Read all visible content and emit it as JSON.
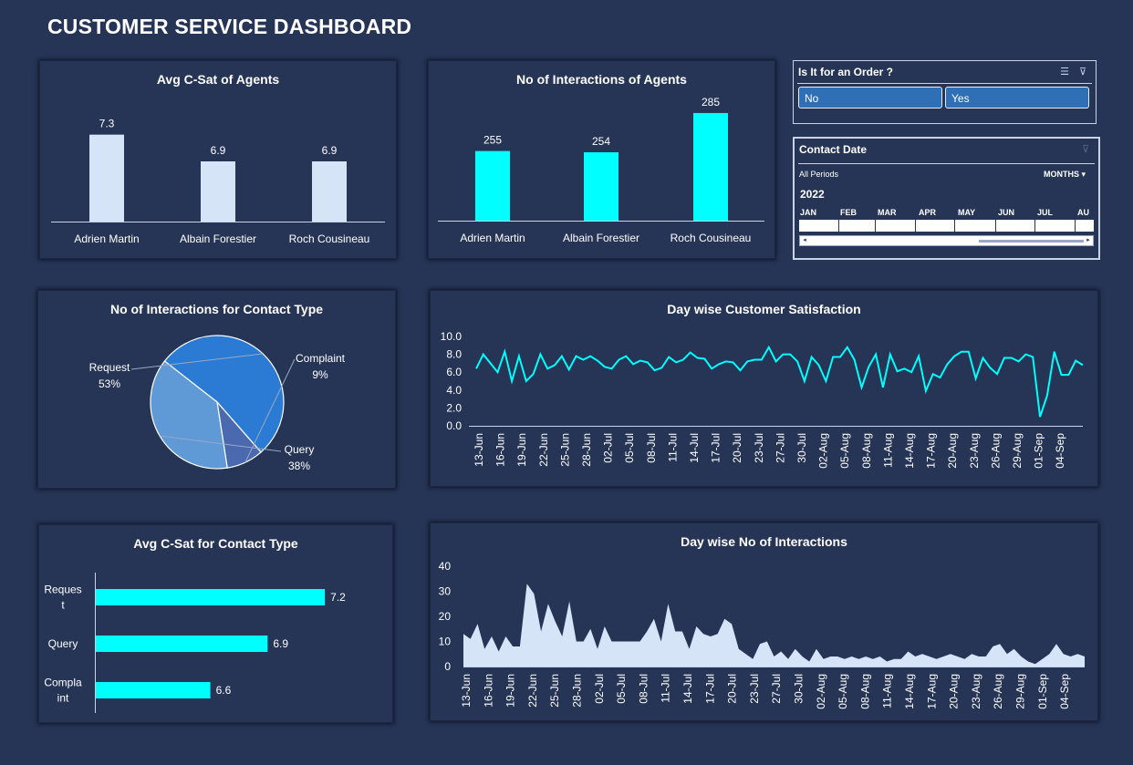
{
  "dashboard": {
    "title": "CUSTOMER SERVICE DASHBOARD"
  },
  "colors": {
    "background": "#263455",
    "cyan": "#00ffff",
    "pale_blue": "#d6e4f7",
    "slicer_button": "#2f6fb5"
  },
  "slicer_order": {
    "title": "Is It for an Order ?",
    "options": [
      "No",
      "Yes"
    ],
    "icons": [
      "multi-select-icon",
      "clear-filter-icon"
    ]
  },
  "timeline": {
    "title": "Contact Date",
    "periods_label": "All Periods",
    "level_label": "MONTHS",
    "year": "2022",
    "months": [
      "JAN",
      "FEB",
      "MAR",
      "APR",
      "MAY",
      "JUN",
      "JUL",
      "AU"
    ]
  },
  "chart_data": [
    {
      "id": "avg_csat_agents",
      "type": "bar",
      "title": "Avg C-Sat of Agents",
      "categories": [
        "Adrien Martin",
        "Albain Forestier",
        "Roch Cousineau"
      ],
      "values": [
        7.3,
        6.9,
        6.9
      ],
      "labels": [
        "7.3",
        "6.9",
        "6.9"
      ],
      "ylim": [
        6.0,
        7.5
      ],
      "color": "#d6e4f7"
    },
    {
      "id": "interactions_agents",
      "type": "bar",
      "title": "No of Interactions of Agents",
      "categories": [
        "Adrien Martin",
        "Albain Forestier",
        "Roch Cousineau"
      ],
      "values": [
        255,
        254,
        285
      ],
      "labels": [
        "255",
        "254",
        "285"
      ],
      "ylim": [
        200,
        290
      ],
      "color": "#00ffff"
    },
    {
      "id": "contact_type_pie",
      "type": "pie",
      "title": "No of Interactions for Contact Type",
      "slices": [
        {
          "name": "Request",
          "label": "53%",
          "value": 53,
          "color": "#2b7bd4"
        },
        {
          "name": "Complaint",
          "label": "9%",
          "value": 9,
          "color": "#4a69ae"
        },
        {
          "name": "Query",
          "label": "38%",
          "value": 38,
          "color": "#5f9ad6"
        }
      ]
    },
    {
      "id": "day_csat",
      "type": "line",
      "title": "Day wise Customer Satisfaction",
      "yticks": [
        "10.0",
        "8.0",
        "6.0",
        "4.0",
        "2.0",
        "0.0"
      ],
      "ylim": [
        0,
        10
      ],
      "xticks": [
        "13-Jun",
        "16-Jun",
        "19-Jun",
        "22-Jun",
        "25-Jun",
        "28-Jun",
        "02-Jul",
        "05-Jul",
        "08-Jul",
        "11-Jul",
        "14-Jul",
        "17-Jul",
        "20-Jul",
        "23-Jul",
        "27-Jul",
        "30-Jul",
        "02-Aug",
        "05-Aug",
        "08-Aug",
        "11-Aug",
        "14-Aug",
        "17-Aug",
        "20-Aug",
        "23-Aug",
        "26-Aug",
        "29-Aug",
        "01-Sep",
        "04-Sep"
      ],
      "values": [
        6.4,
        8.0,
        7.0,
        6.0,
        8.3,
        5.0,
        7.8,
        5.0,
        5.8,
        8.0,
        6.4,
        6.8,
        7.8,
        6.3,
        7.8,
        7.4,
        7.8,
        7.3,
        6.6,
        6.4,
        7.4,
        7.8,
        6.9,
        7.3,
        7.1,
        6.2,
        6.5,
        7.7,
        7.1,
        7.4,
        8.2,
        7.6,
        7.5,
        6.4,
        6.9,
        7.2,
        7.1,
        6.2,
        7.2,
        7.4,
        7.4,
        8.8,
        7.2,
        8.0,
        8.0,
        7.2,
        5.0,
        7.7,
        6.8,
        5.0,
        7.7,
        7.7,
        8.8,
        7.4,
        4.3,
        6.6,
        8.0,
        4.3,
        8.0,
        6.1,
        6.4,
        6.0,
        7.8,
        3.9,
        5.8,
        5.4,
        6.9,
        7.8,
        8.3,
        8.3,
        5.3,
        7.6,
        6.5,
        5.8,
        7.6,
        7.6,
        7.2,
        8.0,
        7.7,
        1.0,
        3.4,
        8.3,
        5.7,
        5.7,
        7.3,
        6.8
      ]
    },
    {
      "id": "csat_contact_type",
      "type": "bar",
      "orientation": "horizontal",
      "title": "Avg C-Sat for Contact Type",
      "categories": [
        "Reques\nt",
        "Query",
        "Compla\nint"
      ],
      "values": [
        7.2,
        6.9,
        6.6
      ],
      "labels": [
        "7.2",
        "6.9",
        "6.6"
      ],
      "xlim": [
        6.0,
        7.4
      ],
      "color": "#00ffff"
    },
    {
      "id": "day_interactions",
      "type": "area",
      "title": "Day wise No of Interactions",
      "yticks": [
        "40",
        "30",
        "20",
        "10",
        "0"
      ],
      "ylim": [
        0,
        40
      ],
      "xticks": [
        "13-Jun",
        "16-Jun",
        "19-Jun",
        "22-Jun",
        "25-Jun",
        "28-Jun",
        "02-Jul",
        "05-Jul",
        "08-Jul",
        "11-Jul",
        "14-Jul",
        "17-Jul",
        "20-Jul",
        "23-Jul",
        "27-Jul",
        "30-Jul",
        "02-Aug",
        "05-Aug",
        "08-Aug",
        "11-Aug",
        "14-Aug",
        "17-Aug",
        "20-Aug",
        "23-Aug",
        "26-Aug",
        "29-Aug",
        "01-Sep",
        "04-Sep"
      ],
      "values": [
        13,
        11,
        17,
        7,
        12,
        6,
        12,
        8,
        8,
        33,
        29,
        14,
        25,
        18,
        12,
        26,
        10,
        10,
        15,
        7,
        16,
        10,
        10,
        10,
        10,
        10,
        14,
        19,
        10,
        25,
        14,
        14,
        7,
        16,
        13,
        12,
        13,
        19,
        17,
        7,
        5,
        3,
        9,
        10,
        4,
        6,
        3,
        7,
        4,
        2,
        7,
        3,
        4,
        4,
        3,
        4,
        3,
        4,
        3,
        4,
        2,
        3,
        3,
        6,
        4,
        5,
        4,
        3,
        4,
        5,
        4,
        3,
        5,
        4,
        4,
        8,
        9,
        5,
        7,
        4,
        2,
        1,
        3,
        5,
        9,
        5,
        4,
        5,
        4
      ]
    }
  ]
}
